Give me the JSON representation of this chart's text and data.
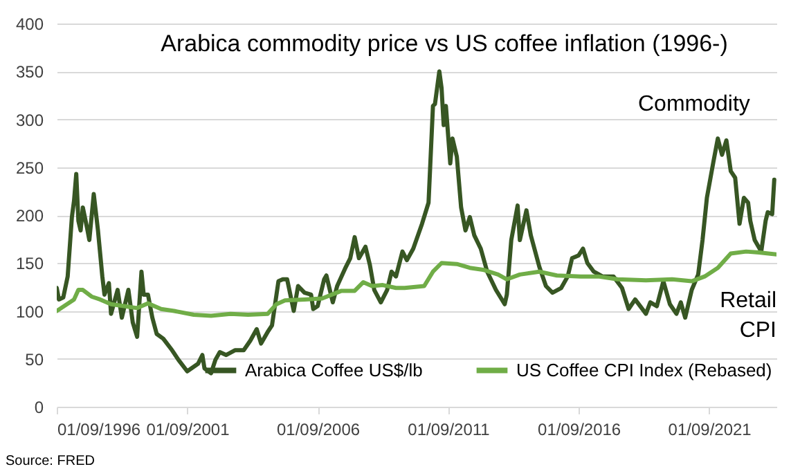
{
  "chart_data": {
    "type": "line",
    "title": "Arabica commodity price vs US coffee inflation (1996-)",
    "annotations": [
      "Commodity",
      "Retail\nCPI",
      "Source: FRED"
    ],
    "xlim": [
      "1996-09",
      "2024-04"
    ],
    "xticks": [
      {
        "value": "1996-09-01",
        "label": "01/09/1996"
      },
      {
        "value": "2001-09-01",
        "label": "01/09/2001"
      },
      {
        "value": "2006-09-01",
        "label": "01/09/2006"
      },
      {
        "value": "2011-09-01",
        "label": "01/09/2011"
      },
      {
        "value": "2016-09-01",
        "label": "01/09/2016"
      },
      {
        "value": "2021-09-01",
        "label": "01/09/2021"
      }
    ],
    "ylim": [
      0,
      400
    ],
    "yticks": [
      0,
      50,
      100,
      150,
      200,
      250,
      300,
      350,
      400
    ],
    "grid": "y",
    "legend": "bottom",
    "line_style": "solid",
    "series": [
      {
        "name": "Arabica Coffee US$/lb",
        "color": "#375623",
        "x": [
          "1996-09",
          "1996-10",
          "1996-12",
          "1997-02",
          "1997-04",
          "1997-05",
          "1997-06",
          "1997-07",
          "1997-08",
          "1997-09",
          "1997-11",
          "1997-12",
          "1998-01",
          "1998-02",
          "1998-04",
          "1998-06",
          "1998-07",
          "1998-09",
          "1998-10",
          "1999-01",
          "1999-03",
          "1999-06",
          "1999-08",
          "1999-10",
          "1999-12",
          "2000-01",
          "2000-03",
          "2000-05",
          "2000-07",
          "2000-10",
          "2001-02",
          "2001-05",
          "2001-09",
          "2002-02",
          "2002-04",
          "2002-05",
          "2002-08",
          "2002-10",
          "2002-12",
          "2003-03",
          "2003-07",
          "2003-11",
          "2004-02",
          "2004-05",
          "2004-07",
          "2004-10",
          "2004-12",
          "2005-03",
          "2005-05",
          "2005-07",
          "2005-10",
          "2005-12",
          "2006-03",
          "2006-06",
          "2006-07",
          "2006-09",
          "2006-12",
          "2007-01",
          "2007-04",
          "2007-06",
          "2007-10",
          "2007-12",
          "2008-02",
          "2008-04",
          "2008-07",
          "2008-09",
          "2008-11",
          "2009-02",
          "2009-05",
          "2009-07",
          "2009-09",
          "2009-12",
          "2010-02",
          "2010-05",
          "2010-09",
          "2010-12",
          "2011-02",
          "2011-03",
          "2011-05",
          "2011-06",
          "2011-07",
          "2011-08",
          "2011-10",
          "2011-11",
          "2012-01",
          "2012-03",
          "2012-05",
          "2012-07",
          "2012-09",
          "2012-12",
          "2013-03",
          "2013-07",
          "2013-11",
          "2013-12",
          "2014-02",
          "2014-05",
          "2014-06",
          "2014-09",
          "2014-11",
          "2015-03",
          "2015-06",
          "2015-09",
          "2016-01",
          "2016-04",
          "2016-06",
          "2016-09",
          "2016-11",
          "2017-01",
          "2017-04",
          "2017-08",
          "2018-01",
          "2018-05",
          "2018-08",
          "2018-11",
          "2019-04",
          "2019-06",
          "2019-09",
          "2019-12",
          "2020-03",
          "2020-06",
          "2020-08",
          "2020-10",
          "2021-01",
          "2021-04",
          "2021-06",
          "2021-08",
          "2021-11",
          "2022-01",
          "2022-03",
          "2022-05",
          "2022-07",
          "2022-09",
          "2022-11",
          "2023-01",
          "2023-03",
          "2023-04",
          "2023-06",
          "2023-09",
          "2023-11",
          "2023-12",
          "2024-02",
          "2024-03"
        ],
        "values": [
          124,
          112,
          114,
          136,
          198,
          215,
          243,
          194,
          184,
          208,
          186,
          174,
          198,
          222,
          184,
          136,
          117,
          129,
          97,
          122,
          93,
          122,
          88,
          73,
          141,
          117,
          117,
          93,
          76,
          71,
          59,
          49,
          37,
          45,
          54,
          40,
          35,
          49,
          57,
          54,
          59,
          59,
          69,
          81,
          66,
          78,
          85,
          131,
          133,
          133,
          100,
          126,
          119,
          117,
          102,
          105,
          133,
          137,
          109,
          126,
          146,
          155,
          177,
          155,
          167,
          148,
          122,
          109,
          122,
          141,
          136,
          162,
          153,
          165,
          191,
          213,
          314,
          316,
          350,
          333,
          294,
          314,
          254,
          280,
          261,
          208,
          184,
          198,
          179,
          165,
          141,
          122,
          107,
          117,
          174,
          210,
          174,
          205,
          179,
          146,
          126,
          119,
          124,
          136,
          155,
          158,
          165,
          150,
          141,
          136,
          136,
          124,
          102,
          112,
          97,
          109,
          105,
          131,
          107,
          97,
          109,
          93,
          122,
          138,
          174,
          218,
          256,
          280,
          263,
          278,
          246,
          239,
          191,
          218,
          213,
          194,
          174,
          162,
          194,
          203,
          201,
          237
        ]
      },
      {
        "name": "US Coffee CPI Index (Rebased)",
        "color": "#70ad47",
        "x": [
          "1996-09",
          "1997-05",
          "1997-07",
          "1997-09",
          "1998-01",
          "1998-05",
          "1998-10",
          "1999-04",
          "1999-10",
          "2000-03",
          "2000-09",
          "2001-03",
          "2001-12",
          "2002-08",
          "2003-05",
          "2004-01",
          "2004-10",
          "2005-02",
          "2005-06",
          "2006-03",
          "2006-11",
          "2007-08",
          "2008-02",
          "2008-06",
          "2008-10",
          "2009-03",
          "2009-09",
          "2010-01",
          "2010-10",
          "2011-02",
          "2011-06",
          "2012-01",
          "2012-07",
          "2013-01",
          "2013-08",
          "2013-12",
          "2014-06",
          "2015-03",
          "2015-11",
          "2016-10",
          "2017-06",
          "2018-03",
          "2019-04",
          "2020-04",
          "2021-01",
          "2021-07",
          "2022-01",
          "2022-07",
          "2023-02",
          "2023-08",
          "2024-04"
        ],
        "values": [
          100,
          112,
          122,
          122,
          115,
          112,
          107,
          105,
          103,
          108,
          102,
          100,
          96,
          95,
          97,
          96,
          97,
          107,
          111,
          112,
          113,
          121,
          121,
          130,
          126,
          127,
          124,
          124,
          126,
          141,
          150,
          149,
          145,
          143,
          138,
          133,
          138,
          141,
          137,
          136,
          136,
          133,
          132,
          133,
          131,
          136,
          145,
          160,
          162,
          161,
          159
        ]
      }
    ]
  }
}
